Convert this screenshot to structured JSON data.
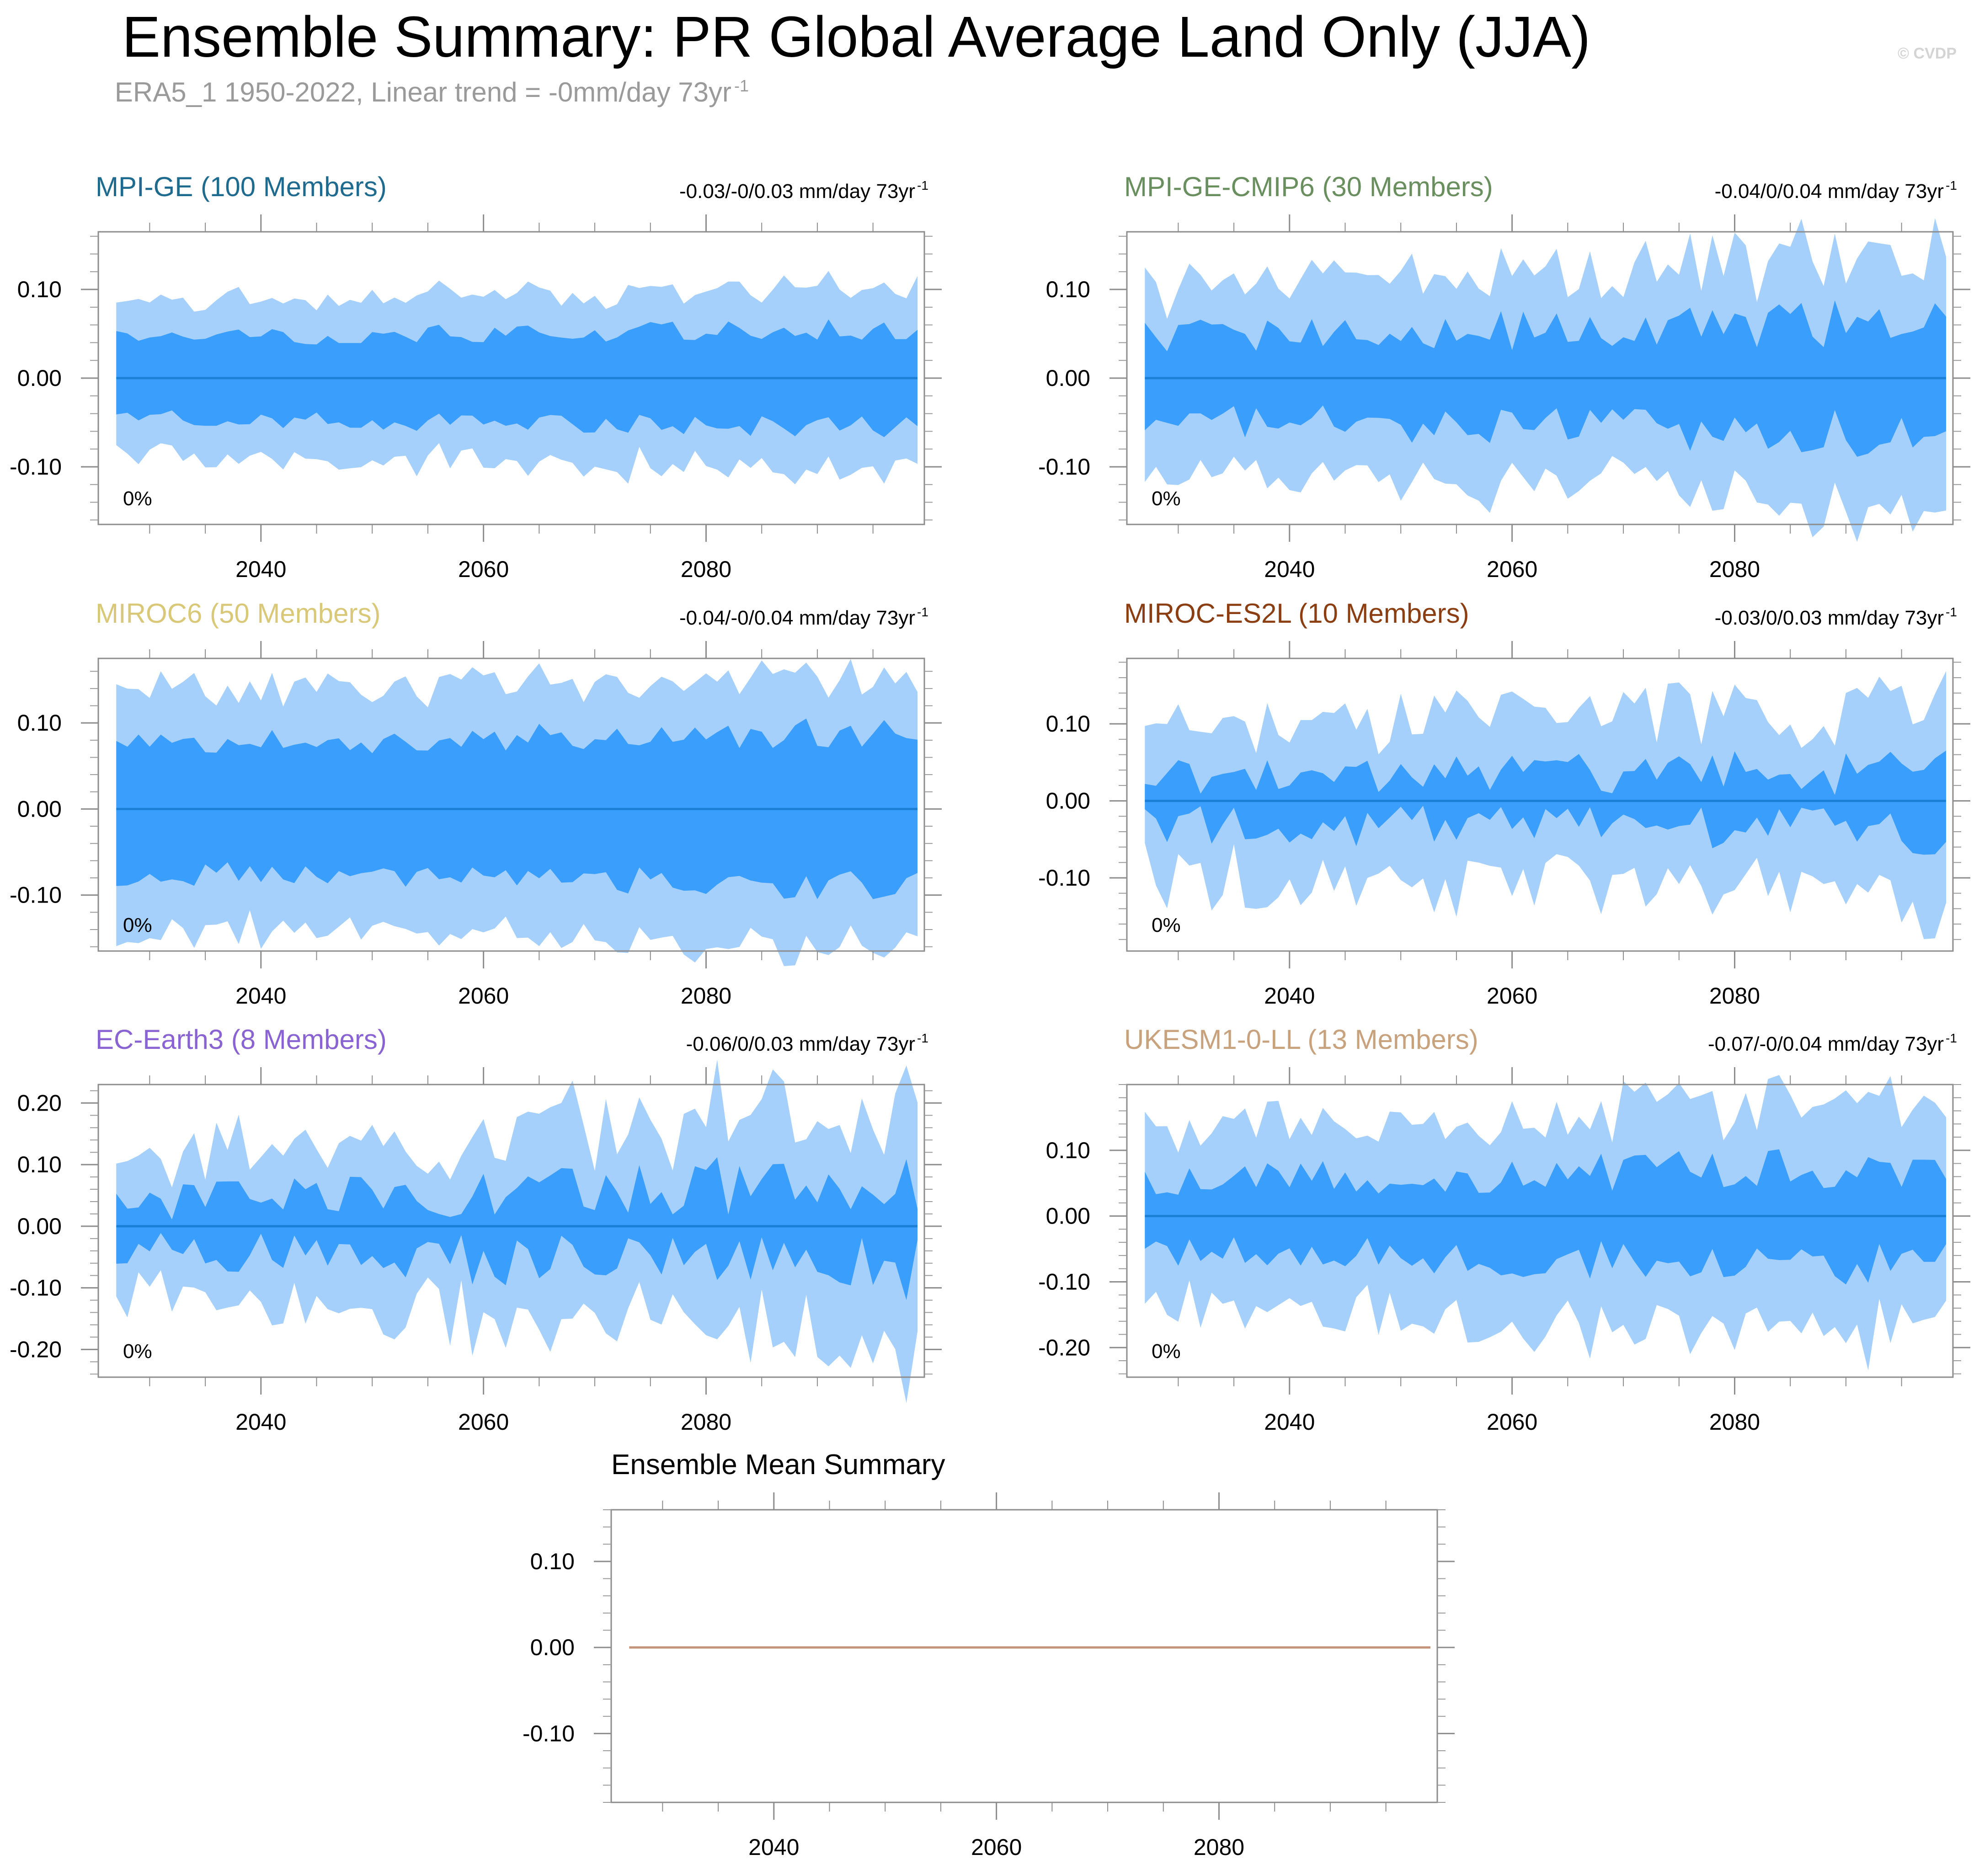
{
  "header": {
    "title": "Ensemble Summary: PR Global Average Land Only (JJA)",
    "subtitle_main": "ERA5_1 1950-2022, Linear trend = -0mm/day 73yr",
    "subtitle_sup": "-1",
    "credit": "© CVDP"
  },
  "colors": {
    "outer_band": "#a6d0fc",
    "inner_band": "#3a9efd",
    "mean_line": "#1c7fd6",
    "ensemble_mean_line": "#c3937a"
  },
  "chart_data": [
    {
      "type": "area",
      "title": "MPI-GE (100 Members)",
      "title_color": "#1e6b8f",
      "trend_text": "-0.03/-0/0.03 mm/day 73yr",
      "trend_sup": "-1",
      "percent_label": "0%",
      "xlim": [
        2026,
        2099
      ],
      "ylim": [
        -0.165,
        0.165
      ],
      "yticks": [
        -0.1,
        0.0,
        0.1
      ],
      "ytick_labels": [
        "-0.10",
        "0.00",
        "0.10"
      ],
      "xticks": [
        2040,
        2060,
        2080
      ],
      "xtick_labels": [
        "2040",
        "2060",
        "2080"
      ],
      "x_start": 2027,
      "x_end": 2099,
      "outer_amp": 0.075,
      "inner_amp": 0.045,
      "noise": 0.02,
      "growth": 0.25,
      "seed": 11
    },
    {
      "type": "area",
      "title": "MPI-GE-CMIP6 (30 Members)",
      "title_color": "#6a8f5e",
      "trend_text": "-0.04/0/0.04 mm/day 73yr",
      "trend_sup": "-1",
      "percent_label": "0%",
      "xlim": [
        2026,
        2099
      ],
      "ylim": [
        -0.165,
        0.165
      ],
      "yticks": [
        -0.1,
        0.0,
        0.1
      ],
      "ytick_labels": [
        "-0.10",
        "0.00",
        "0.10"
      ],
      "xticks": [
        2040,
        2060,
        2080
      ],
      "xtick_labels": [
        "2040",
        "2060",
        "2080"
      ],
      "x_start": 2027,
      "x_end": 2099,
      "outer_amp": 0.08,
      "inner_amp": 0.045,
      "noise": 0.04,
      "growth": 0.45,
      "seed": 23
    },
    {
      "type": "area",
      "title": "MIROC6 (50 Members)",
      "title_color": "#d8c878",
      "trend_text": "-0.04/-0/0.04 mm/day 73yr",
      "trend_sup": "-1",
      "percent_label": "0%",
      "xlim": [
        2026,
        2099
      ],
      "ylim": [
        -0.165,
        0.175
      ],
      "yticks": [
        -0.1,
        0.0,
        0.1
      ],
      "ytick_labels": [
        "-0.10",
        "0.00",
        "0.10"
      ],
      "xticks": [
        2040,
        2060,
        2080
      ],
      "xtick_labels": [
        "2040",
        "2060",
        "2080"
      ],
      "x_start": 2027,
      "x_end": 2099,
      "outer_amp": 0.12,
      "inner_amp": 0.075,
      "noise": 0.03,
      "growth": 0.2,
      "seed": 37
    },
    {
      "type": "area",
      "title": "MIROC-ES2L (10 Members)",
      "title_color": "#8b3e12",
      "trend_text": "-0.03/0/0.03 mm/day 73yr",
      "trend_sup": "-1",
      "percent_label": "0%",
      "xlim": [
        2026,
        2099
      ],
      "ylim": [
        -0.195,
        0.185
      ],
      "yticks": [
        -0.1,
        0.0,
        0.1
      ],
      "ytick_labels": [
        "-0.10",
        "0.00",
        "0.10"
      ],
      "xticks": [
        2040,
        2060,
        2080
      ],
      "xtick_labels": [
        "2040",
        "2060",
        "2080"
      ],
      "x_start": 2027,
      "x_end": 2099,
      "outer_amp": 0.07,
      "inner_amp": 0.03,
      "noise": 0.05,
      "growth": 0.3,
      "seed": 51
    },
    {
      "type": "area",
      "title": "EC-Earth3 (8 Members)",
      "title_color": "#8a63d2",
      "trend_text": "-0.06/0/0.03 mm/day 73yr",
      "trend_sup": "-1",
      "percent_label": "0%",
      "xlim": [
        2026,
        2099
      ],
      "ylim": [
        -0.245,
        0.23
      ],
      "yticks": [
        -0.2,
        -0.1,
        0.0,
        0.1,
        0.2
      ],
      "ytick_labels": [
        "-0.20",
        "-0.10",
        "0.00",
        "0.10",
        "0.20"
      ],
      "xticks": [
        2040,
        2060,
        2080
      ],
      "xtick_labels": [
        "2040",
        "2060",
        "2080"
      ],
      "x_start": 2027,
      "x_end": 2099,
      "outer_amp": 0.08,
      "inner_amp": 0.04,
      "noise": 0.06,
      "growth": 0.8,
      "seed": 67
    },
    {
      "type": "area",
      "title": "UKESM1-0-LL (13 Members)",
      "title_color": "#c8a27c",
      "trend_text": "-0.07/-0/0.04 mm/day 73yr",
      "trend_sup": "-1",
      "percent_label": "0%",
      "xlim": [
        2026,
        2099
      ],
      "ylim": [
        -0.245,
        0.2
      ],
      "yticks": [
        -0.2,
        -0.1,
        0.0,
        0.1
      ],
      "ytick_labels": [
        "-0.20",
        "-0.10",
        "0.00",
        "0.10"
      ],
      "xticks": [
        2040,
        2060,
        2080
      ],
      "xtick_labels": [
        "2040",
        "2060",
        "2080"
      ],
      "x_start": 2027,
      "x_end": 2099,
      "outer_amp": 0.11,
      "inner_amp": 0.055,
      "noise": 0.05,
      "growth": 0.35,
      "seed": 79
    },
    {
      "type": "line",
      "title": "Ensemble Mean Summary",
      "title_color": "#000000",
      "xlim": [
        2026,
        2099
      ],
      "ylim": [
        -0.18,
        0.16
      ],
      "yticks": [
        -0.1,
        0.0,
        0.1
      ],
      "ytick_labels": [
        "-0.10",
        "0.00",
        "0.10"
      ],
      "xticks": [
        2040,
        2060,
        2080
      ],
      "xtick_labels": [
        "2040",
        "2060",
        "2080"
      ],
      "series": [
        {
          "name": "Ensemble mean",
          "x": [
            2027,
            2099
          ],
          "values": [
            0.0,
            0.0
          ]
        }
      ]
    }
  ]
}
